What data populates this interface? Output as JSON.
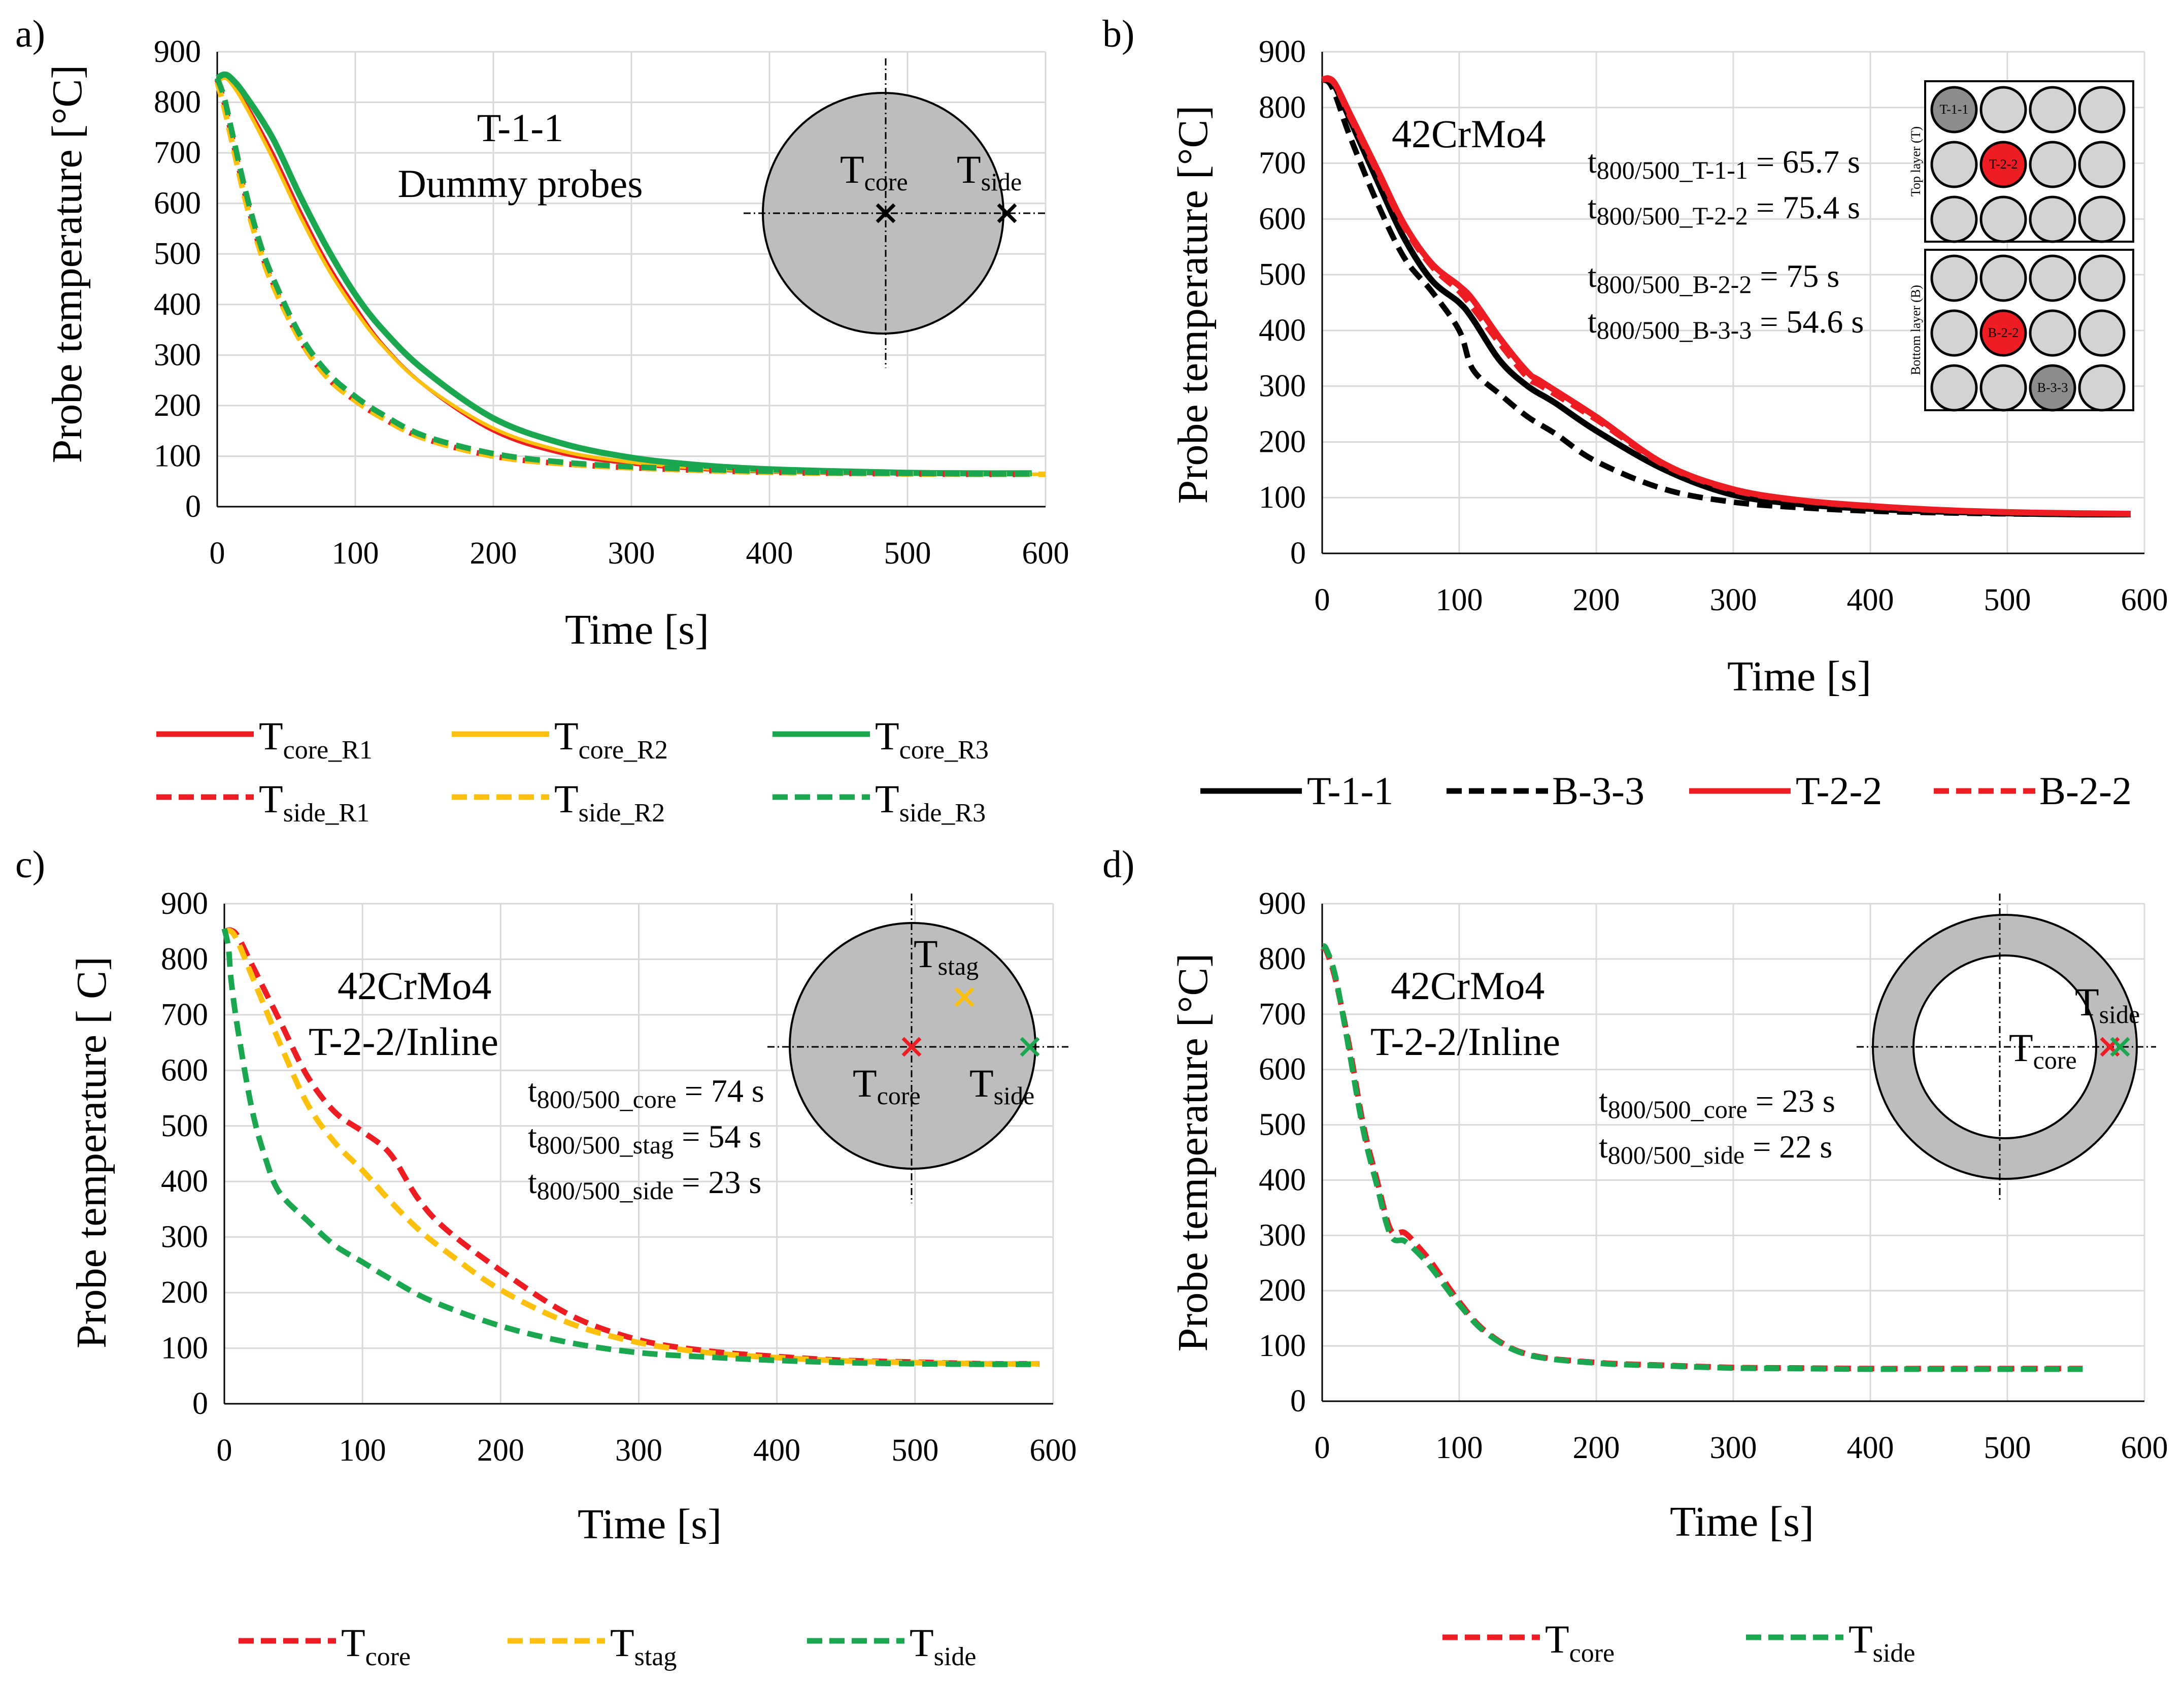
{
  "colors": {
    "red": "#ee1c23",
    "yellow": "#fdc00d",
    "green": "#1ba74f",
    "black": "#000000",
    "gray": "#bdbdbd",
    "inner": "#d3d3d3",
    "dark": "#8c8c8c"
  },
  "axis_titles": {
    "x": "Time [s]",
    "y": "Probe temperature [°C]",
    "y_c": "Probe temperature [ C]"
  },
  "chart_data": [
    {
      "id": "a",
      "panel_label": "a)",
      "type": "line",
      "xlabel": "Time [s]",
      "ylabel": "Probe temperature [°C]",
      "xlim": [
        0,
        600
      ],
      "ylim": [
        0,
        900
      ],
      "xticks": [
        "0",
        "100",
        "200",
        "300",
        "400",
        "500",
        "600"
      ],
      "yticks": [
        "0",
        "100",
        "200",
        "300",
        "400",
        "500",
        "600",
        "700",
        "800",
        "900"
      ],
      "annotations": [
        "T-1-1",
        "Dummy probes"
      ],
      "inset": {
        "core": {
          "main": "T",
          "sub": "core"
        },
        "side": {
          "main": "T",
          "sub": "side"
        }
      },
      "series": [
        {
          "name": "Tcore_R1",
          "main": "T",
          "sub": "core_R1",
          "color": "red",
          "dash": false,
          "x": [
            0,
            5,
            10,
            20,
            40,
            60,
            80,
            100,
            120,
            150,
            200,
            250,
            300,
            350,
            400,
            450,
            500,
            550,
            590
          ],
          "y": [
            845,
            850,
            840,
            800,
            700,
            585,
            480,
            395,
            320,
            240,
            150,
            105,
            85,
            74,
            69,
            66,
            65,
            64,
            64
          ]
        },
        {
          "name": "Tcore_R2",
          "main": "T",
          "sub": "core_R2",
          "color": "yellow",
          "dash": false,
          "x": [
            0,
            5,
            10,
            20,
            40,
            60,
            80,
            100,
            120,
            150,
            200,
            250,
            300,
            350,
            400,
            450,
            500,
            550,
            600
          ],
          "y": [
            840,
            848,
            838,
            795,
            690,
            575,
            472,
            388,
            318,
            240,
            155,
            110,
            88,
            76,
            70,
            67,
            65,
            64,
            64
          ]
        },
        {
          "name": "Tcore_R3",
          "main": "T",
          "sub": "core_R3",
          "color": "green",
          "dash": false,
          "x": [
            0,
            5,
            10,
            20,
            40,
            60,
            80,
            100,
            120,
            150,
            200,
            250,
            300,
            350,
            400,
            450,
            500,
            550,
            590
          ],
          "y": [
            848,
            855,
            848,
            815,
            730,
            615,
            510,
            420,
            350,
            270,
            175,
            125,
            97,
            82,
            74,
            70,
            67,
            66,
            66
          ]
        },
        {
          "name": "Tside_R1",
          "main": "T",
          "sub": "side_R1",
          "color": "red",
          "dash": true,
          "x": [
            0,
            5,
            10,
            20,
            30,
            40,
            60,
            80,
            100,
            120,
            150,
            200,
            250,
            300,
            350,
            400,
            450,
            500,
            550,
            590
          ],
          "y": [
            845,
            800,
            740,
            620,
            520,
            445,
            330,
            255,
            210,
            175,
            135,
            100,
            85,
            77,
            72,
            68,
            66,
            65,
            64,
            64
          ]
        },
        {
          "name": "Tside_R2",
          "main": "T",
          "sub": "side_R2",
          "color": "yellow",
          "dash": true,
          "x": [
            0,
            5,
            10,
            20,
            30,
            40,
            60,
            80,
            100,
            120,
            150,
            200,
            250,
            300,
            350,
            400,
            450,
            500,
            550,
            600
          ],
          "y": [
            840,
            790,
            730,
            610,
            515,
            440,
            330,
            255,
            210,
            175,
            135,
            100,
            85,
            77,
            72,
            68,
            66,
            65,
            64,
            64
          ]
        },
        {
          "name": "Tside_R3",
          "main": "T",
          "sub": "side_R3",
          "color": "green",
          "dash": true,
          "x": [
            0,
            5,
            10,
            20,
            30,
            40,
            60,
            80,
            100,
            120,
            150,
            200,
            250,
            300,
            350,
            400,
            450,
            500,
            550,
            590
          ],
          "y": [
            848,
            810,
            750,
            630,
            530,
            455,
            340,
            265,
            218,
            182,
            140,
            105,
            88,
            79,
            74,
            70,
            67,
            66,
            65,
            65
          ]
        }
      ]
    },
    {
      "id": "b",
      "panel_label": "b)",
      "type": "line",
      "xlabel": "Time [s]",
      "ylabel": "Probe temperature [°C]",
      "xlim": [
        0,
        600
      ],
      "ylim": [
        0,
        900
      ],
      "xticks": [
        "0",
        "100",
        "200",
        "300",
        "400",
        "500",
        "600"
      ],
      "yticks": [
        "0",
        "100",
        "200",
        "300",
        "400",
        "500",
        "600",
        "700",
        "800",
        "900"
      ],
      "annotations": [
        "42CrMo4"
      ],
      "times": [
        {
          "main": "t",
          "sub": "800/500_T-1-1",
          "value": " = 65.7 s"
        },
        {
          "main": "t",
          "sub": "800/500_T-2-2",
          "value": " = 75.4 s"
        },
        {
          "main": "t",
          "sub": "800/500_B-2-2",
          "value": " = 75 s"
        },
        {
          "main": "t",
          "sub": "800/500_B-3-3",
          "value": " = 54.6 s"
        }
      ],
      "inset": {
        "top_layer": "Top layer (T)",
        "bottom_layer": "Bottom layer (B)",
        "top_marks": [
          "T-1-1",
          "T-2-2"
        ],
        "bottom_marks": [
          "B-2-2",
          "B-3-3"
        ]
      },
      "series": [
        {
          "name": "T-1-1",
          "color": "black",
          "dash": false,
          "x": [
            0,
            5,
            10,
            20,
            40,
            60,
            80,
            100,
            110,
            130,
            150,
            170,
            200,
            250,
            300,
            350,
            400,
            450,
            500,
            550,
            590
          ],
          "y": [
            850,
            850,
            835,
            780,
            670,
            565,
            490,
            450,
            420,
            345,
            300,
            270,
            220,
            150,
            105,
            88,
            80,
            75,
            72,
            70,
            70
          ]
        },
        {
          "name": "B-3-3",
          "color": "black",
          "dash": true,
          "x": [
            0,
            5,
            10,
            20,
            40,
            60,
            80,
            100,
            110,
            130,
            150,
            170,
            200,
            250,
            300,
            350,
            400,
            450,
            500,
            550,
            590
          ],
          "y": [
            850,
            845,
            820,
            750,
            630,
            530,
            470,
            400,
            330,
            285,
            245,
            215,
            165,
            115,
            92,
            82,
            76,
            73,
            71,
            70,
            70
          ]
        },
        {
          "name": "T-2-2",
          "color": "red",
          "dash": false,
          "x": [
            0,
            5,
            10,
            20,
            40,
            60,
            80,
            100,
            110,
            130,
            150,
            160,
            200,
            250,
            300,
            350,
            400,
            450,
            500,
            550,
            590
          ],
          "y": [
            850,
            852,
            840,
            790,
            690,
            590,
            520,
            480,
            455,
            385,
            325,
            308,
            245,
            160,
            115,
            95,
            85,
            78,
            74,
            72,
            71
          ]
        },
        {
          "name": "B-2-2",
          "color": "red",
          "dash": true,
          "x": [
            0,
            5,
            10,
            20,
            40,
            60,
            80,
            100,
            110,
            130,
            150,
            160,
            200,
            250,
            300,
            350,
            400,
            450,
            500,
            550,
            590
          ],
          "y": [
            850,
            850,
            838,
            785,
            685,
            585,
            515,
            470,
            440,
            375,
            315,
            300,
            240,
            158,
            113,
            94,
            84,
            77,
            74,
            72,
            71
          ]
        }
      ]
    },
    {
      "id": "c",
      "panel_label": "c)",
      "type": "line",
      "xlabel": "Time [s]",
      "ylabel": "Probe temperature [ C]",
      "xlim": [
        0,
        600
      ],
      "ylim": [
        0,
        900
      ],
      "xticks": [
        "0",
        "100",
        "200",
        "300",
        "400",
        "500",
        "600"
      ],
      "yticks": [
        "0",
        "100",
        "200",
        "300",
        "400",
        "500",
        "600",
        "700",
        "800",
        "900"
      ],
      "annotations": [
        "42CrMo4",
        "T-2-2/Inline"
      ],
      "times": [
        {
          "main": "t",
          "sub": "800/500_core",
          "value": " = 74 s"
        },
        {
          "main": "t",
          "sub": "800/500_stag",
          "value": " = 54 s"
        },
        {
          "main": "t",
          "sub": "800/500_side",
          "value": " = 23 s"
        }
      ],
      "inset": {
        "core": {
          "main": "T",
          "sub": "core"
        },
        "stag": {
          "main": "T",
          "sub": "stag"
        },
        "side": {
          "main": "T",
          "sub": "side"
        }
      },
      "series": [
        {
          "name": "Tcore",
          "main": "T",
          "sub": "core",
          "color": "red",
          "dash": true,
          "x": [
            0,
            5,
            10,
            20,
            40,
            60,
            80,
            100,
            120,
            140,
            160,
            200,
            250,
            300,
            350,
            400,
            450,
            500,
            550,
            590
          ],
          "y": [
            850,
            852,
            840,
            790,
            690,
            590,
            525,
            490,
            450,
            370,
            315,
            240,
            160,
            115,
            95,
            85,
            78,
            75,
            72,
            72
          ]
        },
        {
          "name": "Tstag",
          "main": "T",
          "sub": "stag",
          "color": "yellow",
          "dash": true,
          "x": [
            0,
            5,
            10,
            20,
            40,
            60,
            80,
            100,
            120,
            140,
            160,
            200,
            250,
            300,
            350,
            400,
            450,
            500,
            550,
            590
          ],
          "y": [
            850,
            850,
            830,
            770,
            650,
            540,
            470,
            420,
            365,
            315,
            275,
            205,
            145,
            110,
            92,
            83,
            77,
            74,
            72,
            72
          ]
        },
        {
          "name": "Tside",
          "main": "T",
          "sub": "side",
          "color": "green",
          "dash": true,
          "x": [
            0,
            3,
            5,
            10,
            20,
            30,
            40,
            60,
            80,
            100,
            120,
            150,
            200,
            250,
            300,
            350,
            400,
            450,
            500,
            550,
            590
          ],
          "y": [
            855,
            820,
            760,
            670,
            530,
            440,
            380,
            330,
            285,
            255,
            225,
            185,
            140,
            110,
            92,
            84,
            78,
            74,
            72,
            71,
            71
          ]
        }
      ]
    },
    {
      "id": "d",
      "panel_label": "d)",
      "type": "line",
      "xlabel": "Time [s]",
      "ylabel": "Probe temperature [°C]",
      "xlim": [
        0,
        600
      ],
      "ylim": [
        0,
        900
      ],
      "xticks": [
        "0",
        "100",
        "200",
        "300",
        "400",
        "500",
        "600"
      ],
      "yticks": [
        "0",
        "100",
        "200",
        "300",
        "400",
        "500",
        "600",
        "700",
        "800",
        "900"
      ],
      "annotations": [
        "42CrMo4",
        "T-2-2/Inline"
      ],
      "times": [
        {
          "main": "t",
          "sub": "800/500_core",
          "value": " = 23 s"
        },
        {
          "main": "t",
          "sub": "800/500_side",
          "value": " = 22 s"
        }
      ],
      "inset": {
        "core": {
          "main": "T",
          "sub": "core"
        },
        "side": {
          "main": "T",
          "sub": "side"
        }
      },
      "series": [
        {
          "name": "Tcore",
          "main": "T",
          "sub": "core",
          "color": "red",
          "dash": true,
          "x": [
            0,
            3,
            10,
            20,
            30,
            40,
            50,
            60,
            70,
            80,
            100,
            120,
            150,
            200,
            250,
            300,
            350,
            400,
            450,
            500,
            555
          ],
          "y": [
            820,
            815,
            760,
            640,
            500,
            400,
            310,
            305,
            280,
            250,
            180,
            125,
            85,
            70,
            65,
            61,
            60,
            59,
            59,
            59,
            59
          ]
        },
        {
          "name": "Tside",
          "main": "T",
          "sub": "side",
          "color": "green",
          "dash": true,
          "x": [
            0,
            3,
            10,
            20,
            30,
            40,
            50,
            60,
            70,
            80,
            100,
            120,
            150,
            200,
            250,
            300,
            350,
            400,
            450,
            500,
            555
          ],
          "y": [
            822,
            818,
            765,
            630,
            490,
            390,
            300,
            290,
            268,
            240,
            175,
            123,
            84,
            69,
            64,
            60,
            59,
            58,
            58,
            58,
            58
          ]
        }
      ]
    }
  ]
}
